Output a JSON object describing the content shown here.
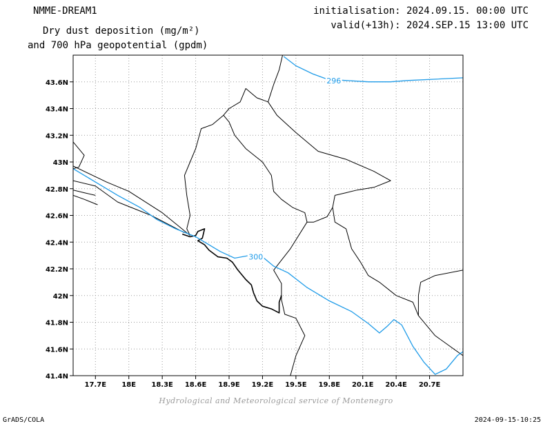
{
  "header": {
    "model": "NMME-DREAM1",
    "title_line1": "Dry dust deposition (mg/m²)",
    "title_line2": "and 700 hPa geopotential (gpdm)",
    "initialisation": "initialisation: 2024.09.15. 00:00 UTC",
    "valid": "valid(+13h): 2024.SEP.15 13:00 UTC"
  },
  "credit": "Hydrological and Meteorological service of Montenegro",
  "footer": {
    "left": "GrADS/COLA",
    "right": "2024-09-15-10:25"
  },
  "map": {
    "lon_range": [
      17.5,
      21.0
    ],
    "lat_range": [
      41.4,
      43.8
    ],
    "lon_ticks": [
      {
        "value": 17.7,
        "label": "17.7E"
      },
      {
        "value": 18.0,
        "label": "18E"
      },
      {
        "value": 18.3,
        "label": "18.3E"
      },
      {
        "value": 18.6,
        "label": "18.6E"
      },
      {
        "value": 18.9,
        "label": "18.9E"
      },
      {
        "value": 19.2,
        "label": "19.2E"
      },
      {
        "value": 19.5,
        "label": "19.5E"
      },
      {
        "value": 19.8,
        "label": "19.8E"
      },
      {
        "value": 20.1,
        "label": "20.1E"
      },
      {
        "value": 20.4,
        "label": "20.4E"
      },
      {
        "value": 20.7,
        "label": "20.7E"
      }
    ],
    "lat_ticks": [
      {
        "value": 41.4,
        "label": "41.4N"
      },
      {
        "value": 41.6,
        "label": "41.6N"
      },
      {
        "value": 41.8,
        "label": "41.8N"
      },
      {
        "value": 42.0,
        "label": "42N"
      },
      {
        "value": 42.2,
        "label": "42.2N"
      },
      {
        "value": 42.4,
        "label": "42.4N"
      },
      {
        "value": 42.6,
        "label": "42.6N"
      },
      {
        "value": 42.8,
        "label": "42.8N"
      },
      {
        "value": 43.0,
        "label": "43N"
      },
      {
        "value": 43.2,
        "label": "43.2N"
      },
      {
        "value": 43.4,
        "label": "43.4N"
      },
      {
        "value": 43.6,
        "label": "43.6N"
      }
    ],
    "grid": true,
    "contour_color": "#1e9be8",
    "contours": [
      {
        "label": "296",
        "label_at": [
          19.84,
          43.61
        ],
        "points": [
          [
            19.39,
            43.79
          ],
          [
            19.5,
            43.72
          ],
          [
            19.65,
            43.66
          ],
          [
            19.78,
            43.62
          ],
          [
            19.95,
            43.61
          ],
          [
            20.15,
            43.6
          ],
          [
            20.35,
            43.6
          ],
          [
            20.5,
            43.61
          ],
          [
            21.0,
            43.63
          ]
        ]
      },
      {
        "label": "300",
        "label_at": [
          19.14,
          42.29
        ],
        "points": [
          [
            17.5,
            42.95
          ],
          [
            17.7,
            42.85
          ],
          [
            17.9,
            42.75
          ],
          [
            18.1,
            42.66
          ],
          [
            18.25,
            42.57
          ],
          [
            18.42,
            42.5
          ],
          [
            18.6,
            42.44
          ],
          [
            18.72,
            42.38
          ],
          [
            18.82,
            42.33
          ],
          [
            18.95,
            42.28
          ],
          [
            19.08,
            42.3
          ],
          [
            19.2,
            42.29
          ],
          [
            19.3,
            42.22
          ],
          [
            19.43,
            42.17
          ],
          [
            19.6,
            42.06
          ],
          [
            19.8,
            41.96
          ],
          [
            20.0,
            41.88
          ],
          [
            20.15,
            41.79
          ],
          [
            20.25,
            41.72
          ],
          [
            20.32,
            41.77
          ],
          [
            20.38,
            41.82
          ],
          [
            20.45,
            41.78
          ],
          [
            20.55,
            41.62
          ],
          [
            20.65,
            41.5
          ],
          [
            20.75,
            41.41
          ],
          [
            20.85,
            41.45
          ],
          [
            20.95,
            41.55
          ],
          [
            21.0,
            41.58
          ]
        ]
      }
    ],
    "borders": [
      {
        "width": 1,
        "points": [
          [
            19.38,
            43.8
          ],
          [
            19.35,
            43.69
          ],
          [
            19.3,
            43.58
          ],
          [
            19.25,
            43.45
          ],
          [
            19.33,
            43.35
          ],
          [
            19.5,
            43.22
          ],
          [
            19.7,
            43.08
          ],
          [
            19.95,
            43.02
          ],
          [
            20.2,
            42.93
          ],
          [
            20.35,
            42.86
          ],
          [
            20.2,
            42.81
          ],
          [
            20.05,
            42.79
          ],
          [
            19.95,
            42.77
          ],
          [
            19.85,
            42.75
          ],
          [
            19.83,
            42.66
          ],
          [
            19.78,
            42.59
          ],
          [
            19.66,
            42.55
          ],
          [
            19.6,
            42.55
          ],
          [
            19.58,
            42.62
          ],
          [
            19.47,
            42.66
          ],
          [
            19.37,
            42.72
          ],
          [
            19.3,
            42.78
          ],
          [
            19.28,
            42.9
          ],
          [
            19.2,
            43.0
          ],
          [
            19.05,
            43.1
          ],
          [
            18.95,
            43.2
          ],
          [
            18.9,
            43.3
          ],
          [
            18.85,
            43.35
          ],
          [
            18.75,
            43.28
          ],
          [
            18.65,
            43.25
          ],
          [
            18.6,
            43.1
          ],
          [
            18.55,
            43.0
          ],
          [
            18.5,
            42.9
          ],
          [
            18.52,
            42.75
          ],
          [
            18.55,
            42.6
          ],
          [
            18.52,
            42.5
          ],
          [
            18.55,
            42.45
          ]
        ]
      },
      {
        "width": 1,
        "points": [
          [
            19.25,
            43.45
          ],
          [
            19.15,
            43.48
          ],
          [
            19.05,
            43.55
          ],
          [
            19.0,
            43.45
          ],
          [
            18.9,
            43.4
          ],
          [
            18.85,
            43.35
          ]
        ]
      },
      {
        "width": 1,
        "points": [
          [
            19.83,
            42.66
          ],
          [
            19.85,
            42.55
          ],
          [
            19.95,
            42.5
          ],
          [
            20.0,
            42.35
          ],
          [
            20.08,
            42.25
          ],
          [
            20.15,
            42.15
          ],
          [
            20.25,
            42.1
          ],
          [
            20.4,
            42.0
          ],
          [
            20.55,
            41.95
          ],
          [
            20.6,
            41.85
          ],
          [
            20.75,
            41.7
          ],
          [
            21.0,
            41.55
          ]
        ]
      },
      {
        "width": 1,
        "points": [
          [
            19.6,
            42.55
          ],
          [
            19.45,
            42.35
          ],
          [
            19.3,
            42.19
          ],
          [
            19.37,
            42.09
          ],
          [
            19.37,
            41.97
          ],
          [
            19.4,
            41.86
          ],
          [
            19.5,
            41.83
          ],
          [
            19.58,
            41.7
          ],
          [
            19.5,
            41.55
          ],
          [
            19.45,
            41.4
          ]
        ]
      },
      {
        "width": 1,
        "points": [
          [
            20.6,
            41.85
          ],
          [
            20.6,
            42.0
          ],
          [
            20.62,
            42.1
          ],
          [
            20.75,
            42.15
          ],
          [
            21.0,
            42.19
          ]
        ]
      },
      {
        "width": 1,
        "points": [
          [
            17.5,
            43.15
          ],
          [
            17.6,
            43.05
          ],
          [
            17.55,
            42.96
          ],
          [
            17.5,
            42.95
          ]
        ]
      },
      {
        "width": 1,
        "points": [
          [
            17.5,
            42.97
          ],
          [
            17.8,
            42.85
          ],
          [
            18.0,
            42.78
          ],
          [
            18.3,
            42.62
          ],
          [
            18.55,
            42.45
          ]
        ]
      },
      {
        "width": 1,
        "points": [
          [
            17.5,
            42.86
          ],
          [
            17.7,
            42.82
          ],
          [
            17.9,
            42.7
          ],
          [
            18.2,
            42.6
          ],
          [
            18.5,
            42.47
          ]
        ]
      },
      {
        "width": 1,
        "points": [
          [
            17.5,
            42.75
          ],
          [
            17.6,
            42.72
          ],
          [
            17.72,
            42.68
          ]
        ]
      },
      {
        "width": 1,
        "points": [
          [
            17.5,
            42.79
          ],
          [
            17.6,
            42.77
          ],
          [
            17.7,
            42.75
          ]
        ]
      },
      {
        "width": 1.6,
        "points": [
          [
            18.48,
            42.46
          ],
          [
            18.55,
            42.44
          ],
          [
            18.6,
            42.45
          ],
          [
            18.62,
            42.48
          ],
          [
            18.68,
            42.5
          ],
          [
            18.66,
            42.43
          ],
          [
            18.62,
            42.41
          ],
          [
            18.68,
            42.38
          ],
          [
            18.72,
            42.34
          ],
          [
            18.8,
            42.29
          ],
          [
            18.88,
            42.28
          ],
          [
            18.93,
            42.25
          ],
          [
            18.98,
            42.19
          ],
          [
            19.05,
            42.12
          ],
          [
            19.1,
            42.08
          ],
          [
            19.12,
            42.02
          ],
          [
            19.15,
            41.96
          ],
          [
            19.2,
            41.92
          ],
          [
            19.28,
            41.9
          ],
          [
            19.35,
            41.87
          ],
          [
            19.35,
            41.95
          ],
          [
            19.37,
            42.0
          ]
        ]
      }
    ]
  }
}
